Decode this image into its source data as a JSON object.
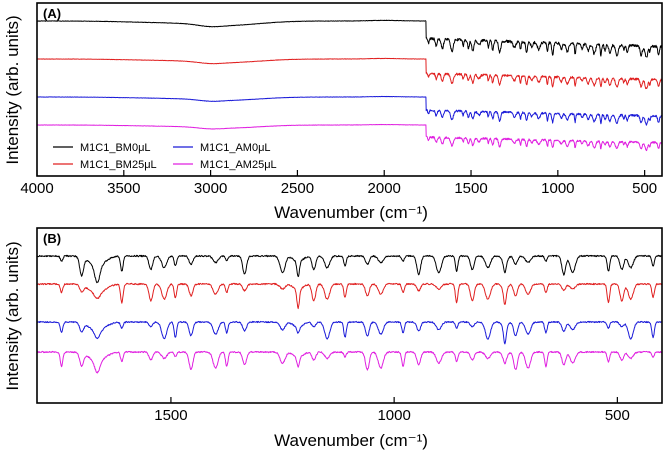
{
  "figure": {
    "panels": [
      "A",
      "B"
    ]
  },
  "chart_data": [
    {
      "type": "line",
      "panel_label": "(A)",
      "xlabel": "Wavenumber (cm⁻¹)",
      "ylabel": "Intensity (arb. units)",
      "xlim": [
        4000,
        400
      ],
      "x_reversed": true,
      "xticks": [
        4000,
        3500,
        3000,
        2500,
        2000,
        1500,
        1000,
        500
      ],
      "yticks_shown": false,
      "grid": false,
      "legend": {
        "placement": "bottom-left",
        "columns": 2,
        "entries": [
          "M1C1_BM0μL",
          "M1C1_AM0μL",
          "M1C1_BM25μL",
          "M1C1_AM25μL"
        ]
      },
      "series": [
        {
          "name": "M1C1_BM0μL",
          "color": "#000000",
          "offset": 3.0
        },
        {
          "name": "M1C1_BM25μL",
          "color": "#e02020",
          "offset": 2.0
        },
        {
          "name": "M1C1_AM0μL",
          "color": "#1a1ad8",
          "offset": 1.0
        },
        {
          "name": "M1C1_AM25μL",
          "color": "#e020e0",
          "offset": 0.2
        }
      ],
      "broad_band_center_cm1": 2900,
      "fingerprint_region_cm1": [
        1750,
        400
      ]
    },
    {
      "type": "line",
      "panel_label": "(B)",
      "xlabel": "Wavenumber (cm⁻¹)",
      "ylabel": "Intensity (arb. units)",
      "xlim": [
        1800,
        400
      ],
      "x_reversed": true,
      "xticks": [
        1500,
        1000,
        500
      ],
      "yticks_shown": false,
      "grid": false,
      "series": [
        {
          "name": "M1C1_BM0μL",
          "color": "#000000",
          "offset": 3.0
        },
        {
          "name": "M1C1_BM25μL",
          "color": "#e02020",
          "offset": 2.0
        },
        {
          "name": "M1C1_AM0μL",
          "color": "#1a1ad8",
          "offset": 1.1
        },
        {
          "name": "M1C1_AM25μL",
          "color": "#e020e0",
          "offset": 0.2
        }
      ],
      "absorption_peaks_cm1": [
        1745,
        1700,
        1665,
        1610,
        1545,
        1515,
        1490,
        1455,
        1400,
        1375,
        1335,
        1250,
        1215,
        1180,
        1150,
        1110,
        1060,
        1030,
        980,
        945,
        900,
        860,
        825,
        790,
        752,
        728,
        700,
        660,
        620,
        600,
        520,
        490,
        470,
        420
      ]
    }
  ]
}
